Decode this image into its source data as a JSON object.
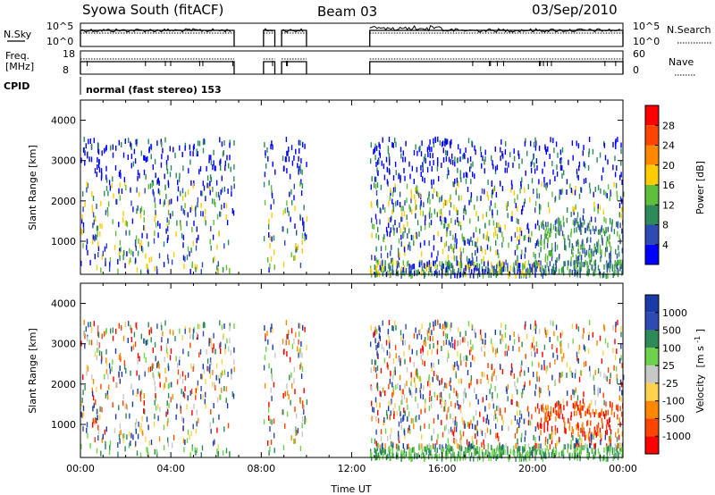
{
  "header": {
    "radar": "Syowa South (fitACF)",
    "beam": "Beam 03",
    "date": "03/Sep/2010"
  },
  "top_panels": {
    "nsky_label": "N.Sky",
    "nsky_ticks": [
      "10^5",
      "10^0"
    ],
    "nsearch_label": "N.Search",
    "nsearch_ticks": [
      "10^5",
      "10^0"
    ],
    "freq_label": "Freq.",
    "freq_unit": "[MHz]",
    "freq_ticks": [
      "18",
      "8"
    ],
    "nave_label": "Nave",
    "nave_ticks": [
      "60",
      "0"
    ],
    "cpid_label": "CPID",
    "cpid_text": "normal (fast stereo) 153"
  },
  "chart_data": [
    {
      "type": "heatmap",
      "name": "power",
      "ylabel": "Slant Range [km]",
      "yticks": [
        "1000",
        "2000",
        "3000",
        "4000"
      ],
      "ylim": [
        180,
        4500
      ],
      "xlim": [
        0,
        24
      ],
      "colorbar_label": "Power [dB]",
      "colorbar_ticks": [
        "4",
        "8",
        "12",
        "16",
        "20",
        "24",
        "28"
      ],
      "colorbar_range": [
        0,
        32
      ],
      "colors": [
        "#0000ff",
        "#2e4bb4",
        "#2e8b57",
        "#5fbf3a",
        "#ffcc00",
        "#ff8800",
        "#ff4400",
        "#ff0000"
      ],
      "coverage_hours": [
        [
          0,
          6.8
        ],
        [
          8.1,
          8.6
        ],
        [
          8.9,
          10.0
        ],
        [
          12.8,
          24
        ]
      ]
    },
    {
      "type": "heatmap",
      "name": "velocity",
      "ylabel": "Slant Range [km]",
      "yticks": [
        "1000",
        "2000",
        "3000",
        "4000"
      ],
      "ylim": [
        180,
        4500
      ],
      "xlim": [
        0,
        24
      ],
      "xlabel": "Time UT",
      "xticks": [
        "00:00",
        "04:00",
        "08:00",
        "12:00",
        "16:00",
        "20:00",
        "00:00"
      ],
      "colorbar_label": "Velocity",
      "colorbar_unit": "[m s",
      "colorbar_unit_exp": "-1",
      "colorbar_unit_end": "]",
      "colorbar_ticks": [
        "1000",
        "500",
        "100",
        "25",
        "-25",
        "-100",
        "-500",
        "-1000"
      ],
      "colorbar_range": [
        -1200,
        1200
      ],
      "colors": [
        "#ff0000",
        "#ff4400",
        "#ff8800",
        "#ffd24d",
        "#c8c8c8",
        "#6fd24d",
        "#2e8b57",
        "#2e4bb4",
        "#1a3aa8"
      ],
      "coverage_hours": [
        [
          0,
          6.8
        ],
        [
          8.1,
          8.6
        ],
        [
          8.9,
          10.0
        ],
        [
          12.8,
          24
        ]
      ]
    }
  ]
}
